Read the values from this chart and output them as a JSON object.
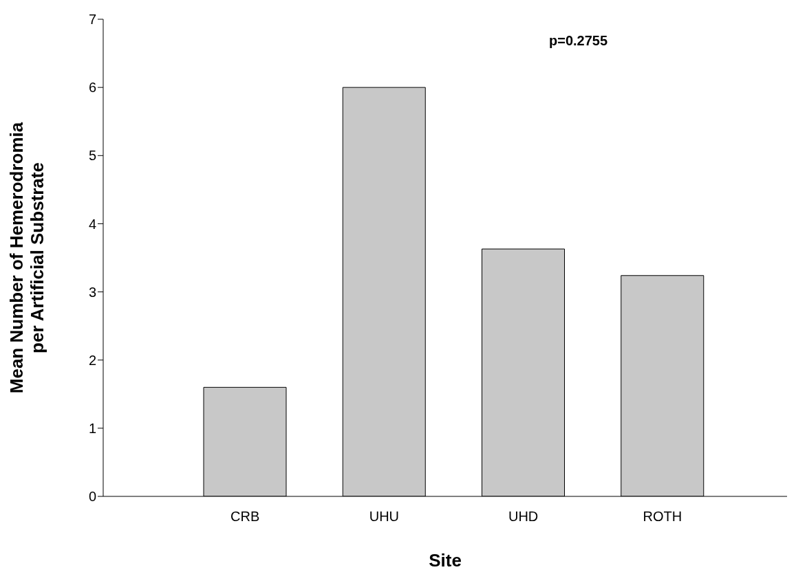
{
  "chart_data": {
    "type": "bar",
    "xlabel": "Site",
    "ylabel": "Mean Number of Hemerodromia per Artificial Substrate",
    "categories": [
      "CRB",
      "UHU",
      "UHD",
      "ROTH"
    ],
    "values": [
      1.6,
      6.0,
      3.63,
      3.24
    ],
    "color": "#c8c8c8",
    "ylim": [
      0,
      7
    ],
    "yticks": [
      0,
      1,
      2,
      3,
      4,
      5,
      6,
      7
    ],
    "annotations": [
      "p=0.2755"
    ]
  }
}
